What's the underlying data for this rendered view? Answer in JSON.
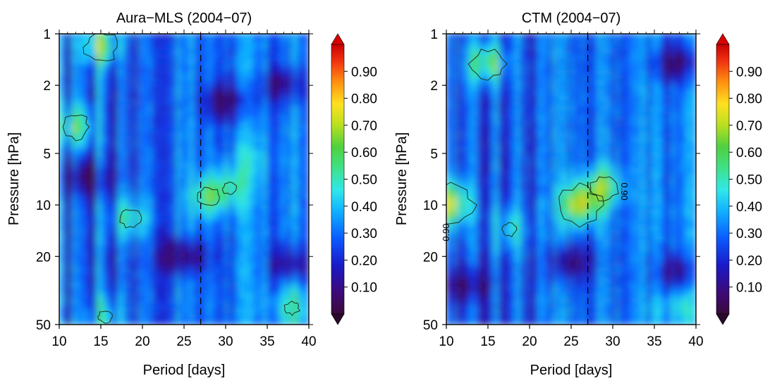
{
  "chart_data": [
    {
      "type": "heatmap",
      "title": "Aura−MLS (2004−07)",
      "xlabel": "Period [days]",
      "ylabel": "Pressure [hPa]",
      "xlim": [
        10,
        40
      ],
      "ylim": [
        50,
        1
      ],
      "y_scale": "log",
      "x_ticks": [
        "10",
        "15",
        "20",
        "25",
        "30",
        "35",
        "40"
      ],
      "y_ticks": [
        "1",
        "2",
        "5",
        "10",
        "20",
        "50"
      ],
      "reference_line_x": 27,
      "contour_level": "0.90",
      "contour_labels": [],
      "colorbar_ticks": [
        "0.10",
        "0.20",
        "0.30",
        "0.40",
        "0.50",
        "0.60",
        "0.70",
        "0.80",
        "0.90"
      ],
      "hotspots": [
        {
          "x": 12,
          "p": 3.5,
          "v": 0.6
        },
        {
          "x": 15,
          "p": 1.2,
          "v": 0.65
        },
        {
          "x": 18.5,
          "p": 12,
          "v": 0.55
        },
        {
          "x": 28,
          "p": 9,
          "v": 0.55
        },
        {
          "x": 30.5,
          "p": 8,
          "v": 0.5
        },
        {
          "x": 15.5,
          "p": 45,
          "v": 0.5
        },
        {
          "x": 38,
          "p": 40,
          "v": 0.5
        },
        {
          "x": 33,
          "p": 5.5,
          "v": 0.4
        }
      ],
      "coldspots": [
        {
          "x": 25,
          "p": 20,
          "v": 0.05
        },
        {
          "x": 30,
          "p": 2.5,
          "v": 0.08
        },
        {
          "x": 37,
          "p": 2,
          "v": 0.1
        },
        {
          "x": 13,
          "p": 7,
          "v": 0.1
        },
        {
          "x": 38,
          "p": 22,
          "v": 0.1
        }
      ]
    },
    {
      "type": "heatmap",
      "title": "CTM (2004−07)",
      "xlabel": "Period [days]",
      "ylabel": "Pressure [hPa]",
      "xlim": [
        10,
        40
      ],
      "ylim": [
        50,
        1
      ],
      "y_scale": "log",
      "x_ticks": [
        "10",
        "15",
        "20",
        "25",
        "30",
        "35",
        "40"
      ],
      "y_ticks": [
        "1",
        "2",
        "5",
        "10",
        "20",
        "50"
      ],
      "reference_line_x": 27,
      "contour_level": "0.90",
      "contour_labels": [
        "0.90",
        "0.90"
      ],
      "colorbar_ticks": [
        "0.10",
        "0.20",
        "0.30",
        "0.40",
        "0.50",
        "0.60",
        "0.70",
        "0.80",
        "0.90"
      ],
      "hotspots": [
        {
          "x": 26,
          "p": 10,
          "v": 0.72
        },
        {
          "x": 29,
          "p": 8,
          "v": 0.6
        },
        {
          "x": 10.5,
          "p": 10,
          "v": 0.75
        },
        {
          "x": 15,
          "p": 1.5,
          "v": 0.65
        },
        {
          "x": 17.5,
          "p": 14,
          "v": 0.5
        },
        {
          "x": 38,
          "p": 40,
          "v": 0.45
        }
      ],
      "coldspots": [
        {
          "x": 38,
          "p": 1.5,
          "v": 0.05
        },
        {
          "x": 25,
          "p": 22,
          "v": 0.08
        },
        {
          "x": 38,
          "p": 25,
          "v": 0.1
        },
        {
          "x": 12,
          "p": 30,
          "v": 0.1
        }
      ]
    }
  ]
}
